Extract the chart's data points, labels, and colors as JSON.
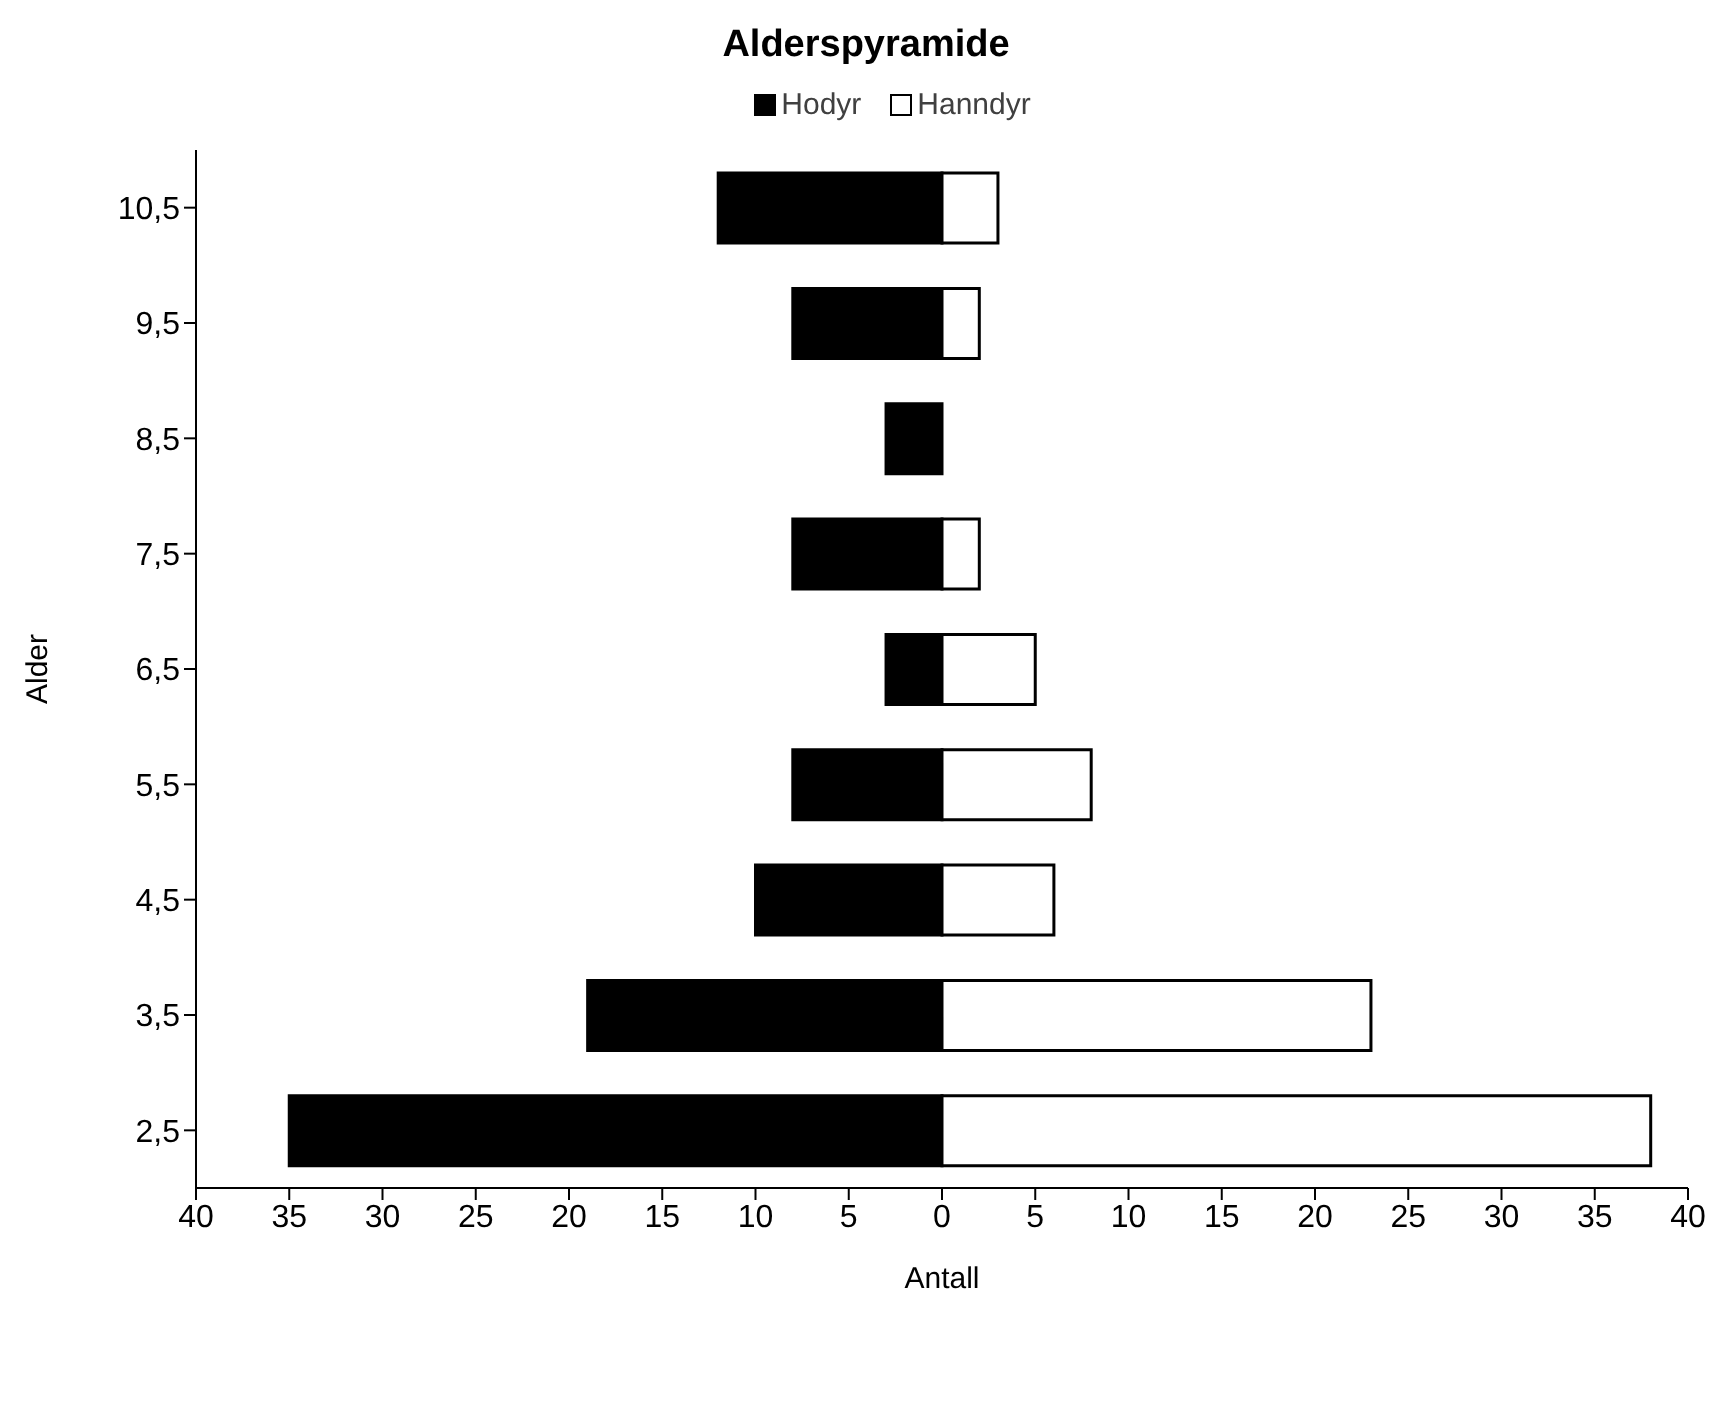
{
  "chart_data": {
    "type": "bar",
    "title": "Alderspyramide",
    "orientation": "horizontal",
    "stacked": true,
    "xlabel": "Antall",
    "ylabel": "Alder",
    "categories": [
      "10,5",
      "9,5",
      "8,5",
      "7,5",
      "6,5",
      "5,5",
      "4,5",
      "3,5",
      "2,5"
    ],
    "series": [
      {
        "name": "Hodyr",
        "color": "#000000",
        "values": [
          -12,
          -8,
          -3,
          -8,
          -3,
          -8,
          -10,
          -19,
          -35
        ]
      },
      {
        "name": "Hanndyr",
        "color": "#ffffff",
        "values": [
          3,
          2,
          0,
          2,
          5,
          8,
          6,
          23,
          38
        ]
      }
    ],
    "xlim": [
      -40,
      40
    ],
    "xticks": [
      {
        "value": -40,
        "label": "40"
      },
      {
        "value": -35,
        "label": "35"
      },
      {
        "value": -30,
        "label": "30"
      },
      {
        "value": -25,
        "label": "25"
      },
      {
        "value": -20,
        "label": "20"
      },
      {
        "value": -15,
        "label": "15"
      },
      {
        "value": -10,
        "label": "10"
      },
      {
        "value": -5,
        "label": "5"
      },
      0,
      5,
      10,
      15,
      20,
      25,
      30,
      35,
      40
    ],
    "legend": "top",
    "grid": false
  }
}
